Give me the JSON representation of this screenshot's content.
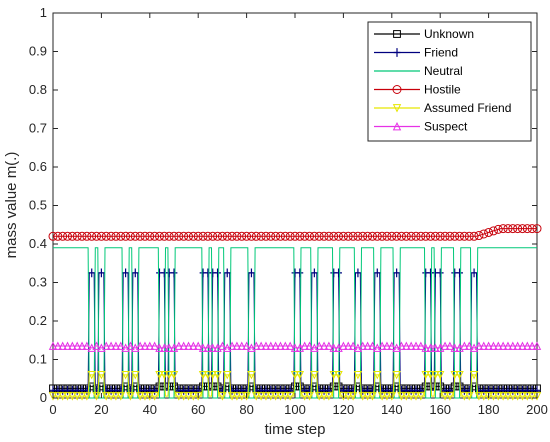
{
  "chart_data": {
    "type": "line",
    "xlabel": "time step",
    "ylabel": "mass value m(.)",
    "xlim": [
      0,
      200
    ],
    "ylim": [
      0,
      1
    ],
    "xticks": [
      "0",
      "20",
      "40",
      "60",
      "80",
      "100",
      "120",
      "140",
      "160",
      "180",
      "200"
    ],
    "yticks": [
      "0",
      "0.1",
      "0.2",
      "0.3",
      "0.4",
      "0.5",
      "0.6",
      "0.7",
      "0.8",
      "0.9",
      "1"
    ],
    "legend_position": "top-right",
    "pulse_centers": [
      16,
      20,
      30,
      34,
      45,
      49,
      63,
      67,
      72,
      82,
      101,
      108,
      117,
      126,
      134,
      142,
      155,
      159,
      167,
      174
    ],
    "pulse_halfwidth": 1.3,
    "series": [
      {
        "name": "Unknown",
        "color": "#000000",
        "marker": "square",
        "base": 0.025,
        "pulse": 0.03,
        "end": 0.025
      },
      {
        "name": "Friend",
        "color": "#00007f",
        "marker": "plus",
        "base": 0.02,
        "pulse": 0.325,
        "end": 0.02
      },
      {
        "name": "Neutral",
        "color": "#00c878",
        "marker": "none",
        "base": 0.39,
        "pulse": 0.0,
        "end": 0.39
      },
      {
        "name": "Hostile",
        "color": "#c8000a",
        "marker": "circle",
        "base": 0.42,
        "pulse": 0.42,
        "end": 0.44
      },
      {
        "name": "Assumed Friend",
        "color": "#e6e600",
        "marker": "triangle-down",
        "base": 0.005,
        "pulse": 0.06,
        "end": 0.005
      },
      {
        "name": "Suspect",
        "color": "#e632e6",
        "marker": "triangle-up",
        "base": 0.135,
        "pulse": 0.13,
        "end": 0.135
      }
    ]
  }
}
